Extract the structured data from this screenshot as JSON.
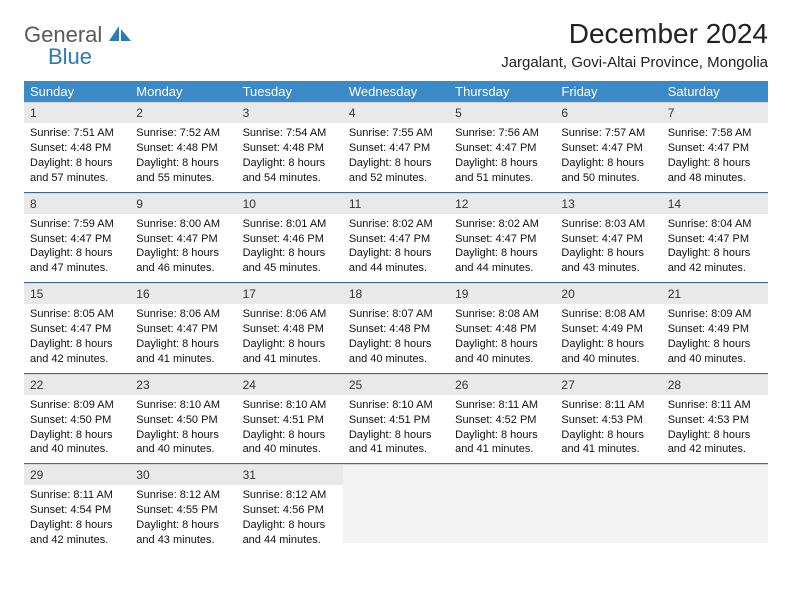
{
  "brand": {
    "general": "General",
    "blue": "Blue"
  },
  "title": "December 2024",
  "location": "Jargalant, Govi-Altai Province, Mongolia",
  "colors": {
    "header_bg": "#3b89c7",
    "header_text": "#ffffff",
    "row_divider": "#3b6c94",
    "daynum_bg": "#e9e9e9",
    "logo_blue": "#2a7bb8",
    "logo_gray": "#5a5a5a"
  },
  "weekdays": [
    "Sunday",
    "Monday",
    "Tuesday",
    "Wednesday",
    "Thursday",
    "Friday",
    "Saturday"
  ],
  "weeks": [
    [
      {
        "n": "1",
        "sunrise": "7:51 AM",
        "sunset": "4:48 PM",
        "daylight": "8 hours and 57 minutes."
      },
      {
        "n": "2",
        "sunrise": "7:52 AM",
        "sunset": "4:48 PM",
        "daylight": "8 hours and 55 minutes."
      },
      {
        "n": "3",
        "sunrise": "7:54 AM",
        "sunset": "4:48 PM",
        "daylight": "8 hours and 54 minutes."
      },
      {
        "n": "4",
        "sunrise": "7:55 AM",
        "sunset": "4:47 PM",
        "daylight": "8 hours and 52 minutes."
      },
      {
        "n": "5",
        "sunrise": "7:56 AM",
        "sunset": "4:47 PM",
        "daylight": "8 hours and 51 minutes."
      },
      {
        "n": "6",
        "sunrise": "7:57 AM",
        "sunset": "4:47 PM",
        "daylight": "8 hours and 50 minutes."
      },
      {
        "n": "7",
        "sunrise": "7:58 AM",
        "sunset": "4:47 PM",
        "daylight": "8 hours and 48 minutes."
      }
    ],
    [
      {
        "n": "8",
        "sunrise": "7:59 AM",
        "sunset": "4:47 PM",
        "daylight": "8 hours and 47 minutes."
      },
      {
        "n": "9",
        "sunrise": "8:00 AM",
        "sunset": "4:47 PM",
        "daylight": "8 hours and 46 minutes."
      },
      {
        "n": "10",
        "sunrise": "8:01 AM",
        "sunset": "4:46 PM",
        "daylight": "8 hours and 45 minutes."
      },
      {
        "n": "11",
        "sunrise": "8:02 AM",
        "sunset": "4:47 PM",
        "daylight": "8 hours and 44 minutes."
      },
      {
        "n": "12",
        "sunrise": "8:02 AM",
        "sunset": "4:47 PM",
        "daylight": "8 hours and 44 minutes."
      },
      {
        "n": "13",
        "sunrise": "8:03 AM",
        "sunset": "4:47 PM",
        "daylight": "8 hours and 43 minutes."
      },
      {
        "n": "14",
        "sunrise": "8:04 AM",
        "sunset": "4:47 PM",
        "daylight": "8 hours and 42 minutes."
      }
    ],
    [
      {
        "n": "15",
        "sunrise": "8:05 AM",
        "sunset": "4:47 PM",
        "daylight": "8 hours and 42 minutes."
      },
      {
        "n": "16",
        "sunrise": "8:06 AM",
        "sunset": "4:47 PM",
        "daylight": "8 hours and 41 minutes."
      },
      {
        "n": "17",
        "sunrise": "8:06 AM",
        "sunset": "4:48 PM",
        "daylight": "8 hours and 41 minutes."
      },
      {
        "n": "18",
        "sunrise": "8:07 AM",
        "sunset": "4:48 PM",
        "daylight": "8 hours and 40 minutes."
      },
      {
        "n": "19",
        "sunrise": "8:08 AM",
        "sunset": "4:48 PM",
        "daylight": "8 hours and 40 minutes."
      },
      {
        "n": "20",
        "sunrise": "8:08 AM",
        "sunset": "4:49 PM",
        "daylight": "8 hours and 40 minutes."
      },
      {
        "n": "21",
        "sunrise": "8:09 AM",
        "sunset": "4:49 PM",
        "daylight": "8 hours and 40 minutes."
      }
    ],
    [
      {
        "n": "22",
        "sunrise": "8:09 AM",
        "sunset": "4:50 PM",
        "daylight": "8 hours and 40 minutes."
      },
      {
        "n": "23",
        "sunrise": "8:10 AM",
        "sunset": "4:50 PM",
        "daylight": "8 hours and 40 minutes."
      },
      {
        "n": "24",
        "sunrise": "8:10 AM",
        "sunset": "4:51 PM",
        "daylight": "8 hours and 40 minutes."
      },
      {
        "n": "25",
        "sunrise": "8:10 AM",
        "sunset": "4:51 PM",
        "daylight": "8 hours and 41 minutes."
      },
      {
        "n": "26",
        "sunrise": "8:11 AM",
        "sunset": "4:52 PM",
        "daylight": "8 hours and 41 minutes."
      },
      {
        "n": "27",
        "sunrise": "8:11 AM",
        "sunset": "4:53 PM",
        "daylight": "8 hours and 41 minutes."
      },
      {
        "n": "28",
        "sunrise": "8:11 AM",
        "sunset": "4:53 PM",
        "daylight": "8 hours and 42 minutes."
      }
    ],
    [
      {
        "n": "29",
        "sunrise": "8:11 AM",
        "sunset": "4:54 PM",
        "daylight": "8 hours and 42 minutes."
      },
      {
        "n": "30",
        "sunrise": "8:12 AM",
        "sunset": "4:55 PM",
        "daylight": "8 hours and 43 minutes."
      },
      {
        "n": "31",
        "sunrise": "8:12 AM",
        "sunset": "4:56 PM",
        "daylight": "8 hours and 44 minutes."
      },
      {
        "empty": true
      },
      {
        "empty": true
      },
      {
        "empty": true
      },
      {
        "empty": true
      }
    ]
  ],
  "labels": {
    "sunrise": "Sunrise:",
    "sunset": "Sunset:",
    "daylight": "Daylight:"
  }
}
